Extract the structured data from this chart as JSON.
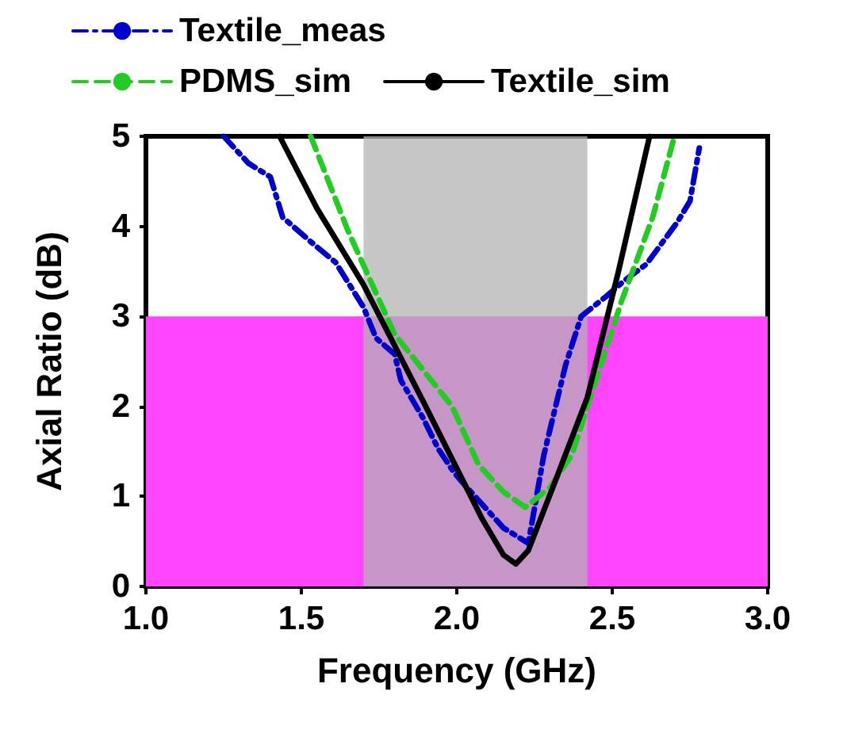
{
  "chart_data": {
    "type": "line",
    "xlabel": "Frequency (GHz)",
    "ylabel": "Axial Ratio (dB)",
    "xlim": [
      1.0,
      3.0
    ],
    "xticks": [
      {
        "value": 1.0,
        "label": "1.0"
      },
      {
        "value": 1.5,
        "label": "1.5"
      },
      {
        "value": 2.0,
        "label": "2.0"
      },
      {
        "value": 2.5,
        "label": "2.5"
      },
      {
        "value": 3.0,
        "label": "3.0"
      }
    ],
    "ylim": [
      0,
      5
    ],
    "yticks": [
      0,
      1,
      2,
      3,
      4,
      5
    ],
    "grid": false,
    "legend": "top left",
    "marker": "none",
    "bands": [
      {
        "axis": "y",
        "from": 0,
        "to": 3,
        "color": "#ff44ff"
      },
      {
        "axis": "x",
        "from": 1.7,
        "to": 2.42,
        "color": "#b3b3b3"
      }
    ],
    "series": [
      {
        "name": "Textile_meas",
        "color": "#0000cc",
        "line_style": "dashdot",
        "x": [
          1.25,
          1.33,
          1.4,
          1.44,
          1.54,
          1.61,
          1.7,
          1.74,
          1.8,
          1.82,
          1.89,
          1.94,
          1.99,
          2.03,
          2.15,
          2.23,
          2.28,
          2.35,
          2.4,
          2.48,
          2.54,
          2.61,
          2.71,
          2.75,
          2.78
        ],
        "values": [
          5,
          4.7,
          4.55,
          4.1,
          3.8,
          3.6,
          3.1,
          2.76,
          2.58,
          2.29,
          1.88,
          1.53,
          1.27,
          1.11,
          0.65,
          0.48,
          1.46,
          2.46,
          3.0,
          3.22,
          3.4,
          3.58,
          4.05,
          4.28,
          4.87
        ]
      },
      {
        "name": "PDMS_sim",
        "color": "#22cc22",
        "line_style": "dashed",
        "x": [
          1.53,
          1.65,
          1.8,
          1.985,
          2.07,
          2.15,
          2.22,
          2.3,
          2.37,
          2.43,
          2.53,
          2.63,
          2.7
        ],
        "values": [
          5,
          3.95,
          2.8,
          2.0,
          1.35,
          1.05,
          0.88,
          1.1,
          1.46,
          2.1,
          3.17,
          4.1,
          5
        ]
      },
      {
        "name": "Textile_sim",
        "color": "#000000",
        "line_style": "solid",
        "x": [
          1.43,
          1.55,
          1.7,
          1.9,
          2.08,
          2.15,
          2.19,
          2.23,
          2.32,
          2.42,
          2.52,
          2.62
        ],
        "values": [
          5,
          4.2,
          3.35,
          2.0,
          0.76,
          0.35,
          0.25,
          0.4,
          1.2,
          2.1,
          3.5,
          5
        ]
      }
    ]
  }
}
